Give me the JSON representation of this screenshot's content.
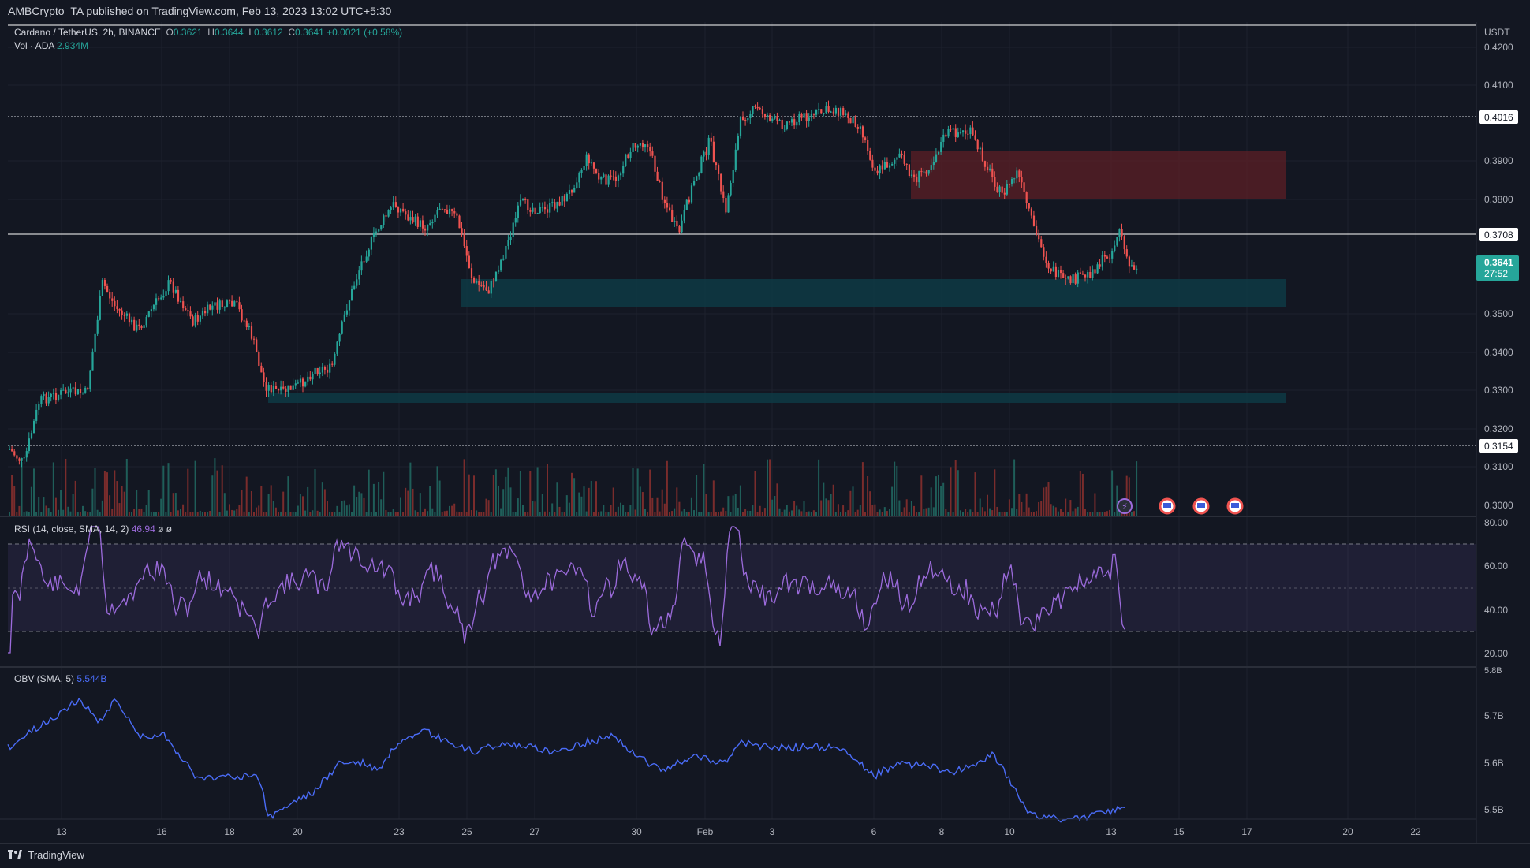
{
  "header": {
    "publish_text": "AMBCrypto_TA published on TradingView.com, Feb 13, 2023 13:02 UTC+5:30"
  },
  "legend": {
    "symbol": "Cardano / TetherUS, 2h, BINANCE",
    "o_label": "O",
    "o_val": "0.3621",
    "h_label": "H",
    "h_val": "0.3644",
    "l_label": "L",
    "l_val": "0.3612",
    "c_label": "C",
    "c_val": "0.3641",
    "change": "+0.0021 (+0.58%)",
    "vol_label": "Vol · ADA",
    "vol_val": "2.934M",
    "rsi_label": "RSI (14, close, SMA, 14, 2)",
    "rsi_val": "46.94",
    "rsi_extra": "ø ø",
    "obv_label": "OBV (SMA, 5)",
    "obv_val": "5.544B"
  },
  "price_axis": {
    "currency": "USDT",
    "ticks": [
      "0.4200",
      "0.4100",
      "0.3900",
      "0.3800",
      "0.3500",
      "0.3400",
      "0.3300",
      "0.3200",
      "0.3100",
      "0.3000"
    ],
    "labels": {
      "r1": "0.4016",
      "r2": "0.3708",
      "s1": "0.3154",
      "last": "0.3641",
      "countdown": "27:52"
    }
  },
  "rsi_axis": {
    "ticks": [
      "80.00",
      "60.00",
      "40.00",
      "20.00"
    ]
  },
  "obv_axis": {
    "ticks": [
      "5.8B",
      "5.7B",
      "5.6B",
      "5.5B"
    ]
  },
  "time_axis": {
    "labels": [
      "13",
      "16",
      "18",
      "20",
      "23",
      "25",
      "27",
      "30",
      "Feb",
      "3",
      "6",
      "8",
      "10",
      "13",
      "15",
      "17",
      "20",
      "22"
    ]
  },
  "footer": {
    "brand": "TradingView"
  },
  "colors": {
    "bg": "#131722",
    "up": "#26a69a",
    "down": "#ef5350",
    "rsi": "#9c6bdc",
    "obv": "#4a6cf7",
    "supply_zone": "#5c1f26",
    "demand_zone": "#0e3a44"
  }
}
